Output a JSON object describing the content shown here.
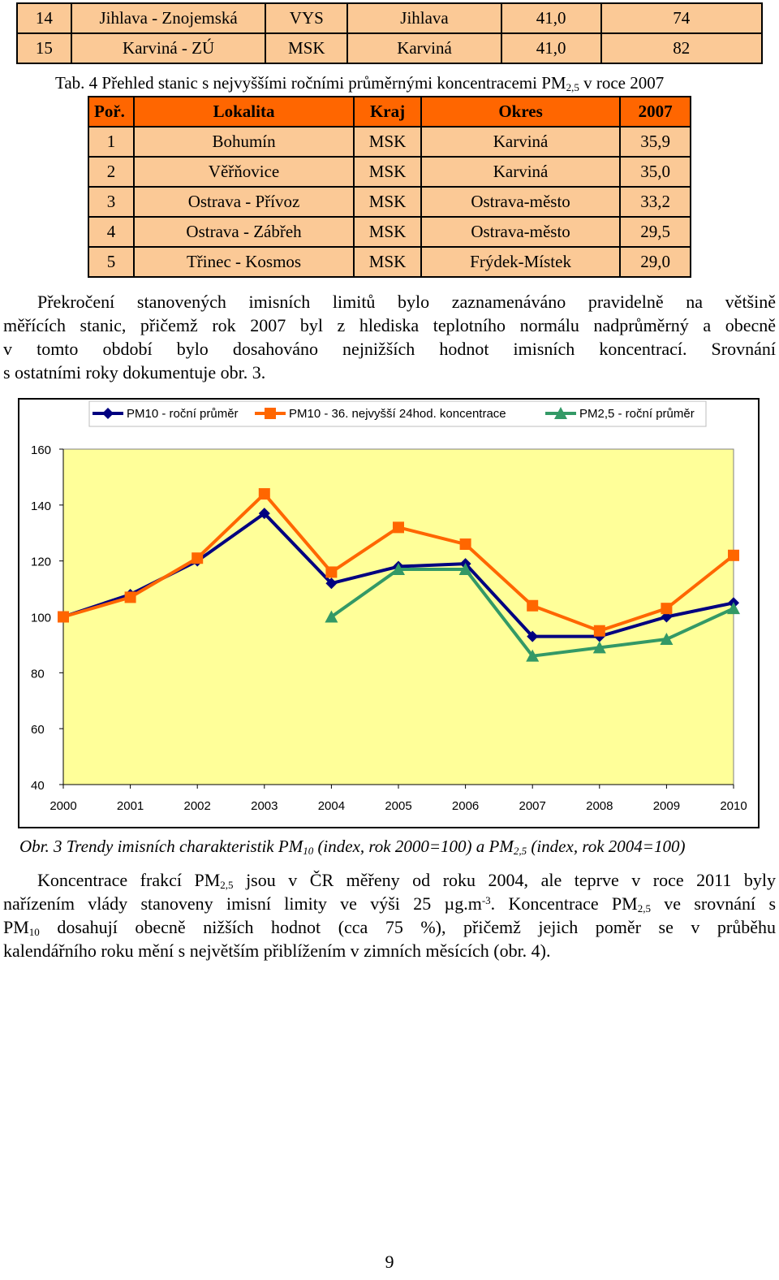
{
  "top_table": {
    "rows": [
      [
        "14",
        "Jihlava - Znojemská",
        "VYS",
        "Jihlava",
        "41,0",
        "74"
      ],
      [
        "15",
        "Karviná - ZÚ",
        "MSK",
        "Karviná",
        "41,0",
        "82"
      ]
    ]
  },
  "table4": {
    "caption_pre": "Tab. 4 Přehled stanic s nejvyššími ročními průměrnými koncentracemi PM",
    "caption_sub": "2,5",
    "caption_post": " v roce 2007",
    "headers": [
      "Poř.",
      "Lokalita",
      "Kraj",
      "Okres",
      "2007"
    ],
    "rows": [
      [
        "1",
        "Bohumín",
        "MSK",
        "Karviná",
        "35,9"
      ],
      [
        "2",
        "Věřňovice",
        "MSK",
        "Karviná",
        "35,0"
      ],
      [
        "3",
        "Ostrava - Přívoz",
        "MSK",
        "Ostrava-město",
        "33,2"
      ],
      [
        "4",
        "Ostrava - Zábřeh",
        "MSK",
        "Ostrava-město",
        "29,5"
      ],
      [
        "5",
        "Třinec - Kosmos",
        "MSK",
        "Frýdek-Místek",
        "29,0"
      ]
    ]
  },
  "paragraph1": {
    "lines": [
      "Překročení stanovených imisních limitů bylo zaznamenáváno pravidelně na většině",
      "měřících stanic, přičemž rok 2007 byl z hlediska teplotního normálu nadprůměrný a obecně",
      "v tomto období bylo dosahováno nejnižších hodnot imisních koncentrací. Srovnání",
      "s ostatními roky dokumentuje obr. 3."
    ]
  },
  "chart_data": {
    "type": "line",
    "x": [
      "2000",
      "2001",
      "2002",
      "2003",
      "2004",
      "2005",
      "2006",
      "2007",
      "2008",
      "2009",
      "2010"
    ],
    "ylim": [
      40,
      160
    ],
    "yticks": [
      "160",
      "140",
      "120",
      "100",
      "80",
      "60",
      "40"
    ],
    "legend_position": "top",
    "plot_background": "#ffff99",
    "series": [
      {
        "name": "PM10 - roční průměr",
        "color": "#000080",
        "marker": "diamond",
        "values": [
          100,
          108,
          120,
          137,
          112,
          118,
          119,
          93,
          93,
          100,
          105
        ]
      },
      {
        "name": "PM10 - 36. nejvyšší 24hod. koncentrace",
        "color": "#ff6600",
        "marker": "square",
        "values": [
          100,
          107,
          121,
          144,
          116,
          132,
          126,
          104,
          95,
          103,
          122
        ]
      },
      {
        "name": "PM2,5 - roční průměr",
        "color": "#339966",
        "marker": "triangle",
        "values": [
          null,
          null,
          null,
          null,
          100,
          117,
          117,
          86,
          89,
          92,
          103
        ]
      }
    ]
  },
  "figure_caption": {
    "p1": "Obr. 3 Trendy imisních charakteristik PM",
    "s1": "10",
    "p2": " (index, rok 2000=100) a PM",
    "s2": "2,5",
    "p3": " (index, rok 2004=100)"
  },
  "paragraph2": {
    "l1a": "Koncentrace frakcí PM",
    "l1s": "2,5",
    "l1b": " jsou v ČR měřeny od roku 2004, ale teprve v roce 2011 byly",
    "l2a": "nařízením vlády stanoveny imisní limity ve výši 25 µg.m",
    "l2sup": "-3",
    "l2b": ". Koncentrace PM",
    "l2s": "2,5",
    "l2c": " ve srovnání s",
    "l3a": "PM",
    "l3s": "10",
    "l3b": " dosahují obecně nižších hodnot (cca 75 %), přičemž jejich poměr se v průběhu",
    "l4": "kalendářního roku mění s největším přiblížením v zimních měsících (obr. 4)."
  },
  "page_number": "9"
}
